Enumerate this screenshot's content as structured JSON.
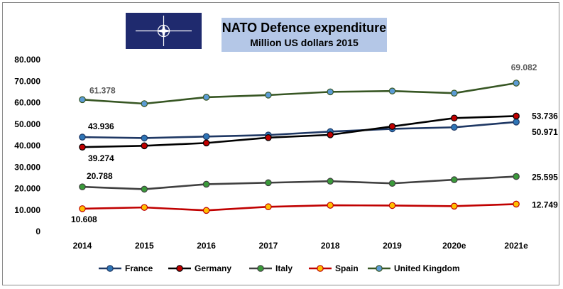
{
  "title": {
    "line1": "NATO Defence expenditure",
    "line2": "Million US dollars 2015"
  },
  "logo": {
    "icon": "nato-compass-rose-icon",
    "background": "#1f2a6e"
  },
  "chart_data": {
    "type": "line",
    "categories": [
      "2014",
      "2015",
      "2016",
      "2017",
      "2018",
      "2019",
      "2020e",
      "2021e"
    ],
    "ylim": [
      0,
      80000
    ],
    "y_ticks": [
      {
        "value": 0,
        "label": "0"
      },
      {
        "value": 10000,
        "label": "10.000"
      },
      {
        "value": 20000,
        "label": "20.000"
      },
      {
        "value": 30000,
        "label": "30.000"
      },
      {
        "value": 40000,
        "label": "40.000"
      },
      {
        "value": 50000,
        "label": "50.000"
      },
      {
        "value": 60000,
        "label": "60.000"
      },
      {
        "value": 70000,
        "label": "70.000"
      },
      {
        "value": 80000,
        "label": "80.000"
      }
    ],
    "grid": false,
    "legend_position": "bottom",
    "series": [
      {
        "name": "France",
        "line_color": "#1f3864",
        "marker_color": "#2e75b6",
        "values": [
          43936,
          43500,
          44200,
          44900,
          46500,
          47800,
          48500,
          50971
        ]
      },
      {
        "name": "Germany",
        "line_color": "#000000",
        "marker_color": "#c00000",
        "values": [
          39274,
          39900,
          41200,
          43700,
          45000,
          48900,
          52800,
          53736
        ]
      },
      {
        "name": "Italy",
        "line_color": "#404040",
        "marker_color": "#3a9a3a",
        "values": [
          20788,
          19700,
          22000,
          22700,
          23400,
          22400,
          24100,
          25595
        ]
      },
      {
        "name": "Spain",
        "line_color": "#c00000",
        "marker_color": "#ffc000",
        "values": [
          10608,
          11200,
          9800,
          11500,
          12200,
          12100,
          11800,
          12749
        ]
      },
      {
        "name": "United Kingdom",
        "line_color": "#375623",
        "marker_color": "#5b9bd5",
        "values": [
          61378,
          59500,
          62500,
          63500,
          65000,
          65400,
          64400,
          69082
        ]
      }
    ],
    "data_labels": [
      {
        "series": "United Kingdom",
        "index": 0,
        "text": "61.378",
        "color": "#595959"
      },
      {
        "series": "United Kingdom",
        "index": 7,
        "text": "69.082",
        "color": "#595959"
      },
      {
        "series": "France",
        "index": 0,
        "text": "43.936",
        "color": "#000000"
      },
      {
        "series": "France",
        "index": 7,
        "text": "50.971",
        "color": "#000000"
      },
      {
        "series": "Germany",
        "index": 0,
        "text": "39.274",
        "color": "#000000"
      },
      {
        "series": "Germany",
        "index": 7,
        "text": "53.736",
        "color": "#000000"
      },
      {
        "series": "Italy",
        "index": 0,
        "text": "20.788",
        "color": "#000000"
      },
      {
        "series": "Italy",
        "index": 7,
        "text": "25.595",
        "color": "#000000"
      },
      {
        "series": "Spain",
        "index": 0,
        "text": "10.608",
        "color": "#000000"
      },
      {
        "series": "Spain",
        "index": 7,
        "text": "12.749",
        "color": "#000000"
      }
    ]
  }
}
